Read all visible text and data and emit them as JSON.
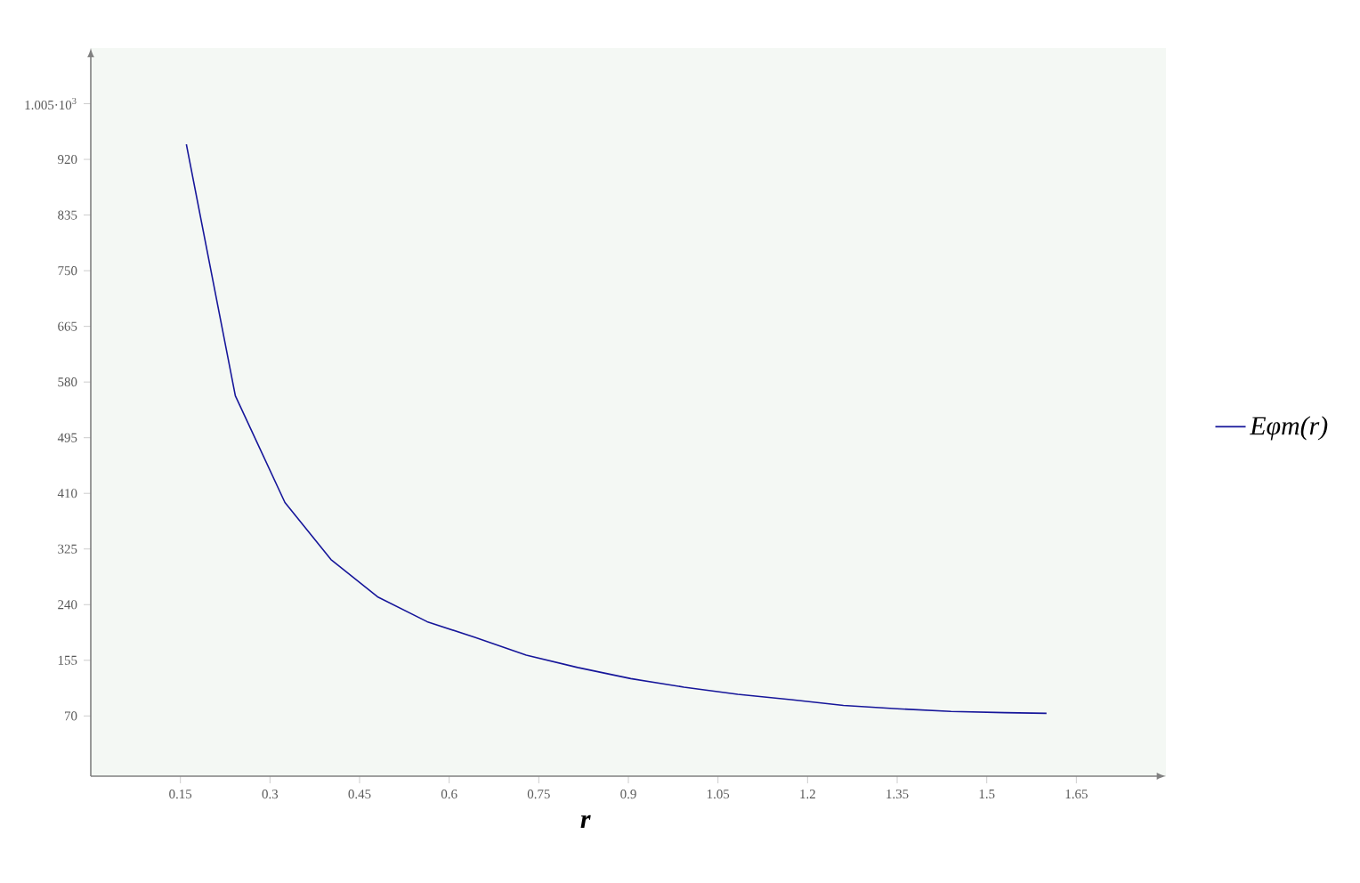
{
  "chart_data": {
    "type": "line",
    "xlabel": "r",
    "x": [
      0.16,
      0.242,
      0.325,
      0.402,
      0.48,
      0.563,
      0.643,
      0.729,
      0.815,
      0.904,
      0.993,
      1.083,
      1.172,
      1.26,
      1.35,
      1.44,
      1.53,
      1.6
    ],
    "series": [
      {
        "name": "Eφm(r)",
        "color": "#16169a",
        "values": [
          943,
          559,
          396,
          309,
          252,
          214,
          190,
          163,
          144,
          127,
          114,
          103,
          95,
          86,
          81,
          77,
          75,
          74
        ]
      }
    ],
    "xlim": [
      0,
      1.8
    ],
    "ylim": [
      -22,
      1090
    ],
    "xticks": [
      0.15,
      0.3,
      0.45,
      0.6,
      0.75,
      0.9,
      1.05,
      1.2,
      1.35,
      1.5,
      1.65
    ],
    "yticks": [
      70,
      155,
      240,
      325,
      410,
      495,
      580,
      665,
      750,
      835,
      920,
      {
        "value": 1005,
        "label": "1.005·10$^{3}$"
      }
    ],
    "legend": "right",
    "grid": false,
    "marker": "none",
    "line_style": "solid"
  }
}
